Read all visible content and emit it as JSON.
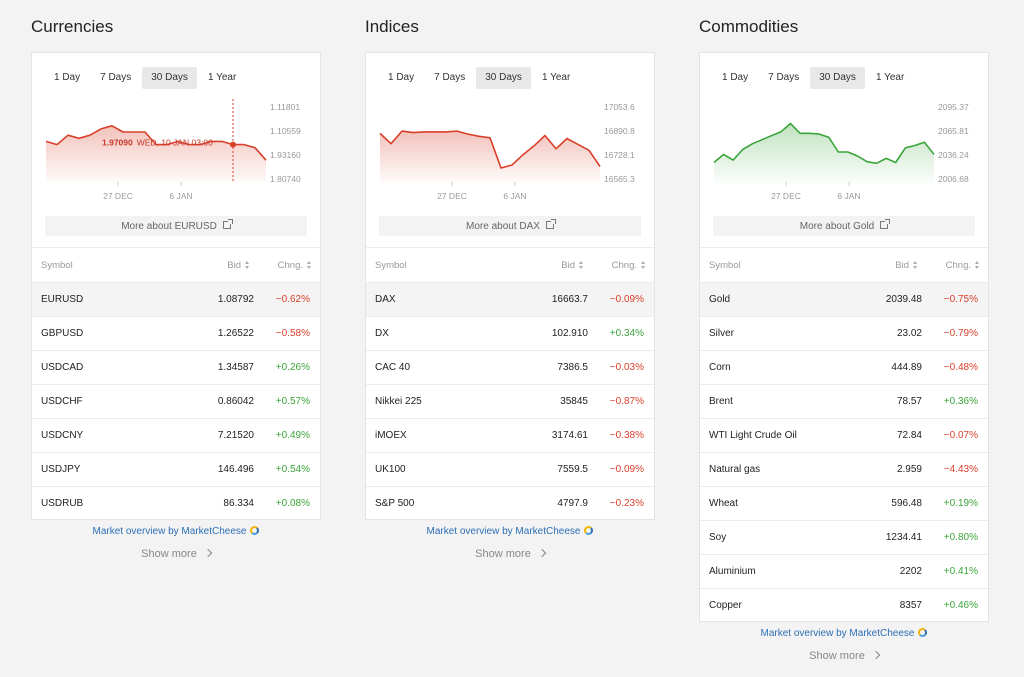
{
  "panels": [
    {
      "title": "Currencies",
      "tabs": [
        "1 Day",
        "7 Days",
        "30 Days",
        "1 Year"
      ],
      "active_tab": 2,
      "more_about": "More about EURUSD",
      "table": {
        "headers": {
          "symbol": "Symbol",
          "bid": "Bid",
          "chng": "Chng."
        },
        "rows": [
          {
            "symbol": "EURUSD",
            "bid": "1.08792",
            "chng": "−0.62%",
            "dir": "neg",
            "highlight": true
          },
          {
            "symbol": "GBPUSD",
            "bid": "1.26522",
            "chng": "−0.58%",
            "dir": "neg"
          },
          {
            "symbol": "USDCAD",
            "bid": "1.34587",
            "chng": "+0.26%",
            "dir": "pos"
          },
          {
            "symbol": "USDCHF",
            "bid": "0.86042",
            "chng": "+0.57%",
            "dir": "pos"
          },
          {
            "symbol": "USDCNY",
            "bid": "7.21520",
            "chng": "+0.49%",
            "dir": "pos"
          },
          {
            "symbol": "USDJPY",
            "bid": "146.496",
            "chng": "+0.54%",
            "dir": "pos"
          },
          {
            "symbol": "USDRUB",
            "bid": "86.334",
            "chng": "+0.08%",
            "dir": "pos"
          }
        ]
      },
      "overview": "Market overview by MarketCheese",
      "show_more": "Show more",
      "chart_data": {
        "type": "area",
        "color": "#d9402b",
        "y_ticks": [
          "1.11801",
          "1.10559",
          "1.93160",
          "1.80740"
        ],
        "x_ticks": [
          "27 DEC",
          "6 JAN"
        ],
        "values": [
          3,
          2,
          5,
          4,
          5,
          7,
          8,
          6,
          6,
          6,
          2,
          2,
          3,
          2,
          2,
          3,
          3,
          2,
          2,
          1,
          -3
        ],
        "tooltip": {
          "value": "1.97090",
          "label": "WED, 10 JAN 03:00"
        }
      }
    },
    {
      "title": "Indices",
      "tabs": [
        "1 Day",
        "7 Days",
        "30 Days",
        "1 Year"
      ],
      "active_tab": 2,
      "more_about": "More about DAX",
      "table": {
        "headers": {
          "symbol": "Symbol",
          "bid": "Bid",
          "chng": "Chng."
        },
        "rows": [
          {
            "symbol": "DAX",
            "bid": "16663.7",
            "chng": "−0.09%",
            "dir": "neg",
            "highlight": true
          },
          {
            "symbol": "DX",
            "bid": "102.910",
            "chng": "+0.34%",
            "dir": "pos"
          },
          {
            "symbol": "CAC 40",
            "bid": "7386.5",
            "chng": "−0.03%",
            "dir": "neg"
          },
          {
            "symbol": "Nikkei 225",
            "bid": "35845",
            "chng": "−0.87%",
            "dir": "neg"
          },
          {
            "symbol": "iMOEX",
            "bid": "3174.61",
            "chng": "−0.38%",
            "dir": "neg"
          },
          {
            "symbol": "UK100",
            "bid": "7559.5",
            "chng": "−0.09%",
            "dir": "neg"
          },
          {
            "symbol": "S&P 500",
            "bid": "4797.9",
            "chng": "−0.23%",
            "dir": "neg"
          }
        ]
      },
      "overview": "Market overview by MarketCheese",
      "show_more": "Show more",
      "chart_data": {
        "type": "area",
        "color": "#d9402b",
        "y_ticks": [
          "17053.6",
          "16890.8",
          "16728.1",
          "16565.3"
        ],
        "x_ticks": [
          "27 DEC",
          "6 JAN"
        ],
        "values": [
          16875,
          16805,
          16890,
          16880,
          16885,
          16885,
          16885,
          16890,
          16870,
          16855,
          16845,
          16640,
          16660,
          16730,
          16790,
          16860,
          16770,
          16840,
          16800,
          16760,
          16650
        ],
        "y_range": [
          16565.3,
          17053.6
        ]
      }
    },
    {
      "title": "Commodities",
      "tabs": [
        "1 Day",
        "7 Days",
        "30 Days",
        "1 Year"
      ],
      "active_tab": 2,
      "more_about": "More about Gold",
      "table": {
        "headers": {
          "symbol": "Symbol",
          "bid": "Bid",
          "chng": "Chng."
        },
        "rows": [
          {
            "symbol": "Gold",
            "bid": "2039.48",
            "chng": "−0.75%",
            "dir": "neg",
            "highlight": true
          },
          {
            "symbol": "Silver",
            "bid": "23.02",
            "chng": "−0.79%",
            "dir": "neg"
          },
          {
            "symbol": "Corn",
            "bid": "444.89",
            "chng": "−0.48%",
            "dir": "neg"
          },
          {
            "symbol": "Brent",
            "bid": "78.57",
            "chng": "+0.36%",
            "dir": "pos"
          },
          {
            "symbol": "WTI Light Crude Oil",
            "bid": "72.84",
            "chng": "−0.07%",
            "dir": "neg"
          },
          {
            "symbol": "Natural gas",
            "bid": "2.959",
            "chng": "−4.43%",
            "dir": "neg"
          },
          {
            "symbol": "Wheat",
            "bid": "596.48",
            "chng": "+0.19%",
            "dir": "pos"
          },
          {
            "symbol": "Soy",
            "bid": "1234.41",
            "chng": "+0.80%",
            "dir": "pos"
          },
          {
            "symbol": "Aluminium",
            "bid": "2202",
            "chng": "+0.41%",
            "dir": "pos"
          },
          {
            "symbol": "Copper",
            "bid": "8357",
            "chng": "+0.46%",
            "dir": "pos"
          }
        ]
      },
      "overview": "Market overview by MarketCheese",
      "show_more": "Show more",
      "chart_data": {
        "type": "area",
        "color": "#3aa43a",
        "y_ticks": [
          "2095.37",
          "2065.81",
          "2036.24",
          "2006.68"
        ],
        "x_ticks": [
          "27 DEC",
          "6 JAN"
        ],
        "values": [
          2027,
          2037,
          2030,
          2043,
          2050,
          2055,
          2060,
          2065,
          2075,
          2063,
          2063,
          2062,
          2058,
          2040,
          2040,
          2035,
          2028,
          2026,
          2032,
          2027,
          2045,
          2048,
          2052,
          2037
        ],
        "y_range": [
          2006.68,
          2095.37
        ]
      }
    }
  ]
}
